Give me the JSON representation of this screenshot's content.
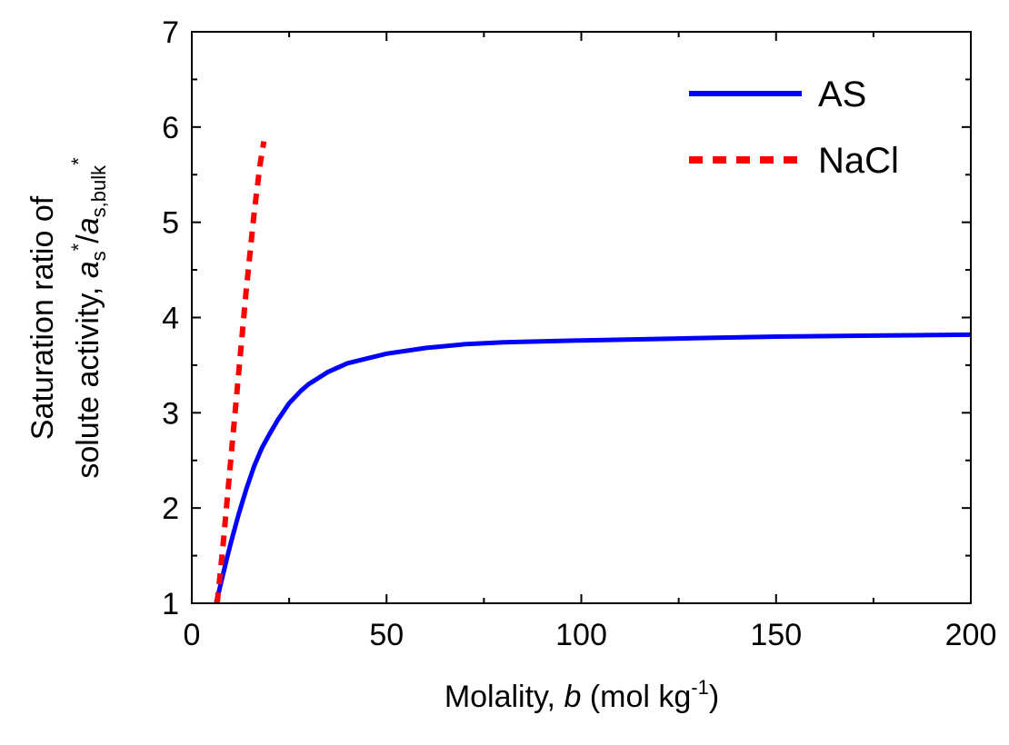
{
  "chart_data": {
    "type": "line",
    "title": "",
    "xlabel": {
      "prefix": "Molality, ",
      "var": "b",
      "units_pre": " (mol kg",
      "units_sup": "-1",
      "units_post": ")"
    },
    "ylabel": {
      "line1": "Saturation ratio of",
      "line2_prefix": "solute activity, ",
      "a1": "a",
      "a1_sub": "s",
      "a1_sup": "*",
      "slash": "/",
      "a2": "a",
      "a2_sub": "s,bulk",
      "a2_sup": "*"
    },
    "xlim": [
      0,
      200
    ],
    "ylim": [
      1,
      7
    ],
    "xticks": [
      0,
      50,
      100,
      150,
      200
    ],
    "yticks": [
      1,
      2,
      3,
      4,
      5,
      6,
      7
    ],
    "x_minor_step": 25,
    "y_minor_step": 0.5,
    "legend_position": "top-right",
    "series": [
      {
        "name": "AS",
        "color": "#0000ff",
        "style": "solid",
        "x": [
          6.2,
          7,
          8,
          9,
          10,
          12,
          14,
          16,
          18,
          20,
          22,
          25,
          28,
          30,
          35,
          40,
          45,
          50,
          60,
          70,
          80,
          100,
          125,
          150,
          175,
          200
        ],
        "y": [
          1.0,
          1.13,
          1.3,
          1.47,
          1.63,
          1.93,
          2.2,
          2.44,
          2.63,
          2.78,
          2.92,
          3.1,
          3.23,
          3.3,
          3.43,
          3.52,
          3.57,
          3.62,
          3.68,
          3.72,
          3.74,
          3.76,
          3.78,
          3.8,
          3.81,
          3.82
        ]
      },
      {
        "name": "NaCl",
        "color": "#ff0000",
        "style": "dashed",
        "x": [
          6.5,
          8,
          10,
          12,
          14,
          16,
          17.5,
          18.5
        ],
        "y": [
          1.0,
          1.6,
          2.5,
          3.4,
          4.3,
          5.1,
          5.6,
          5.85
        ]
      }
    ]
  }
}
